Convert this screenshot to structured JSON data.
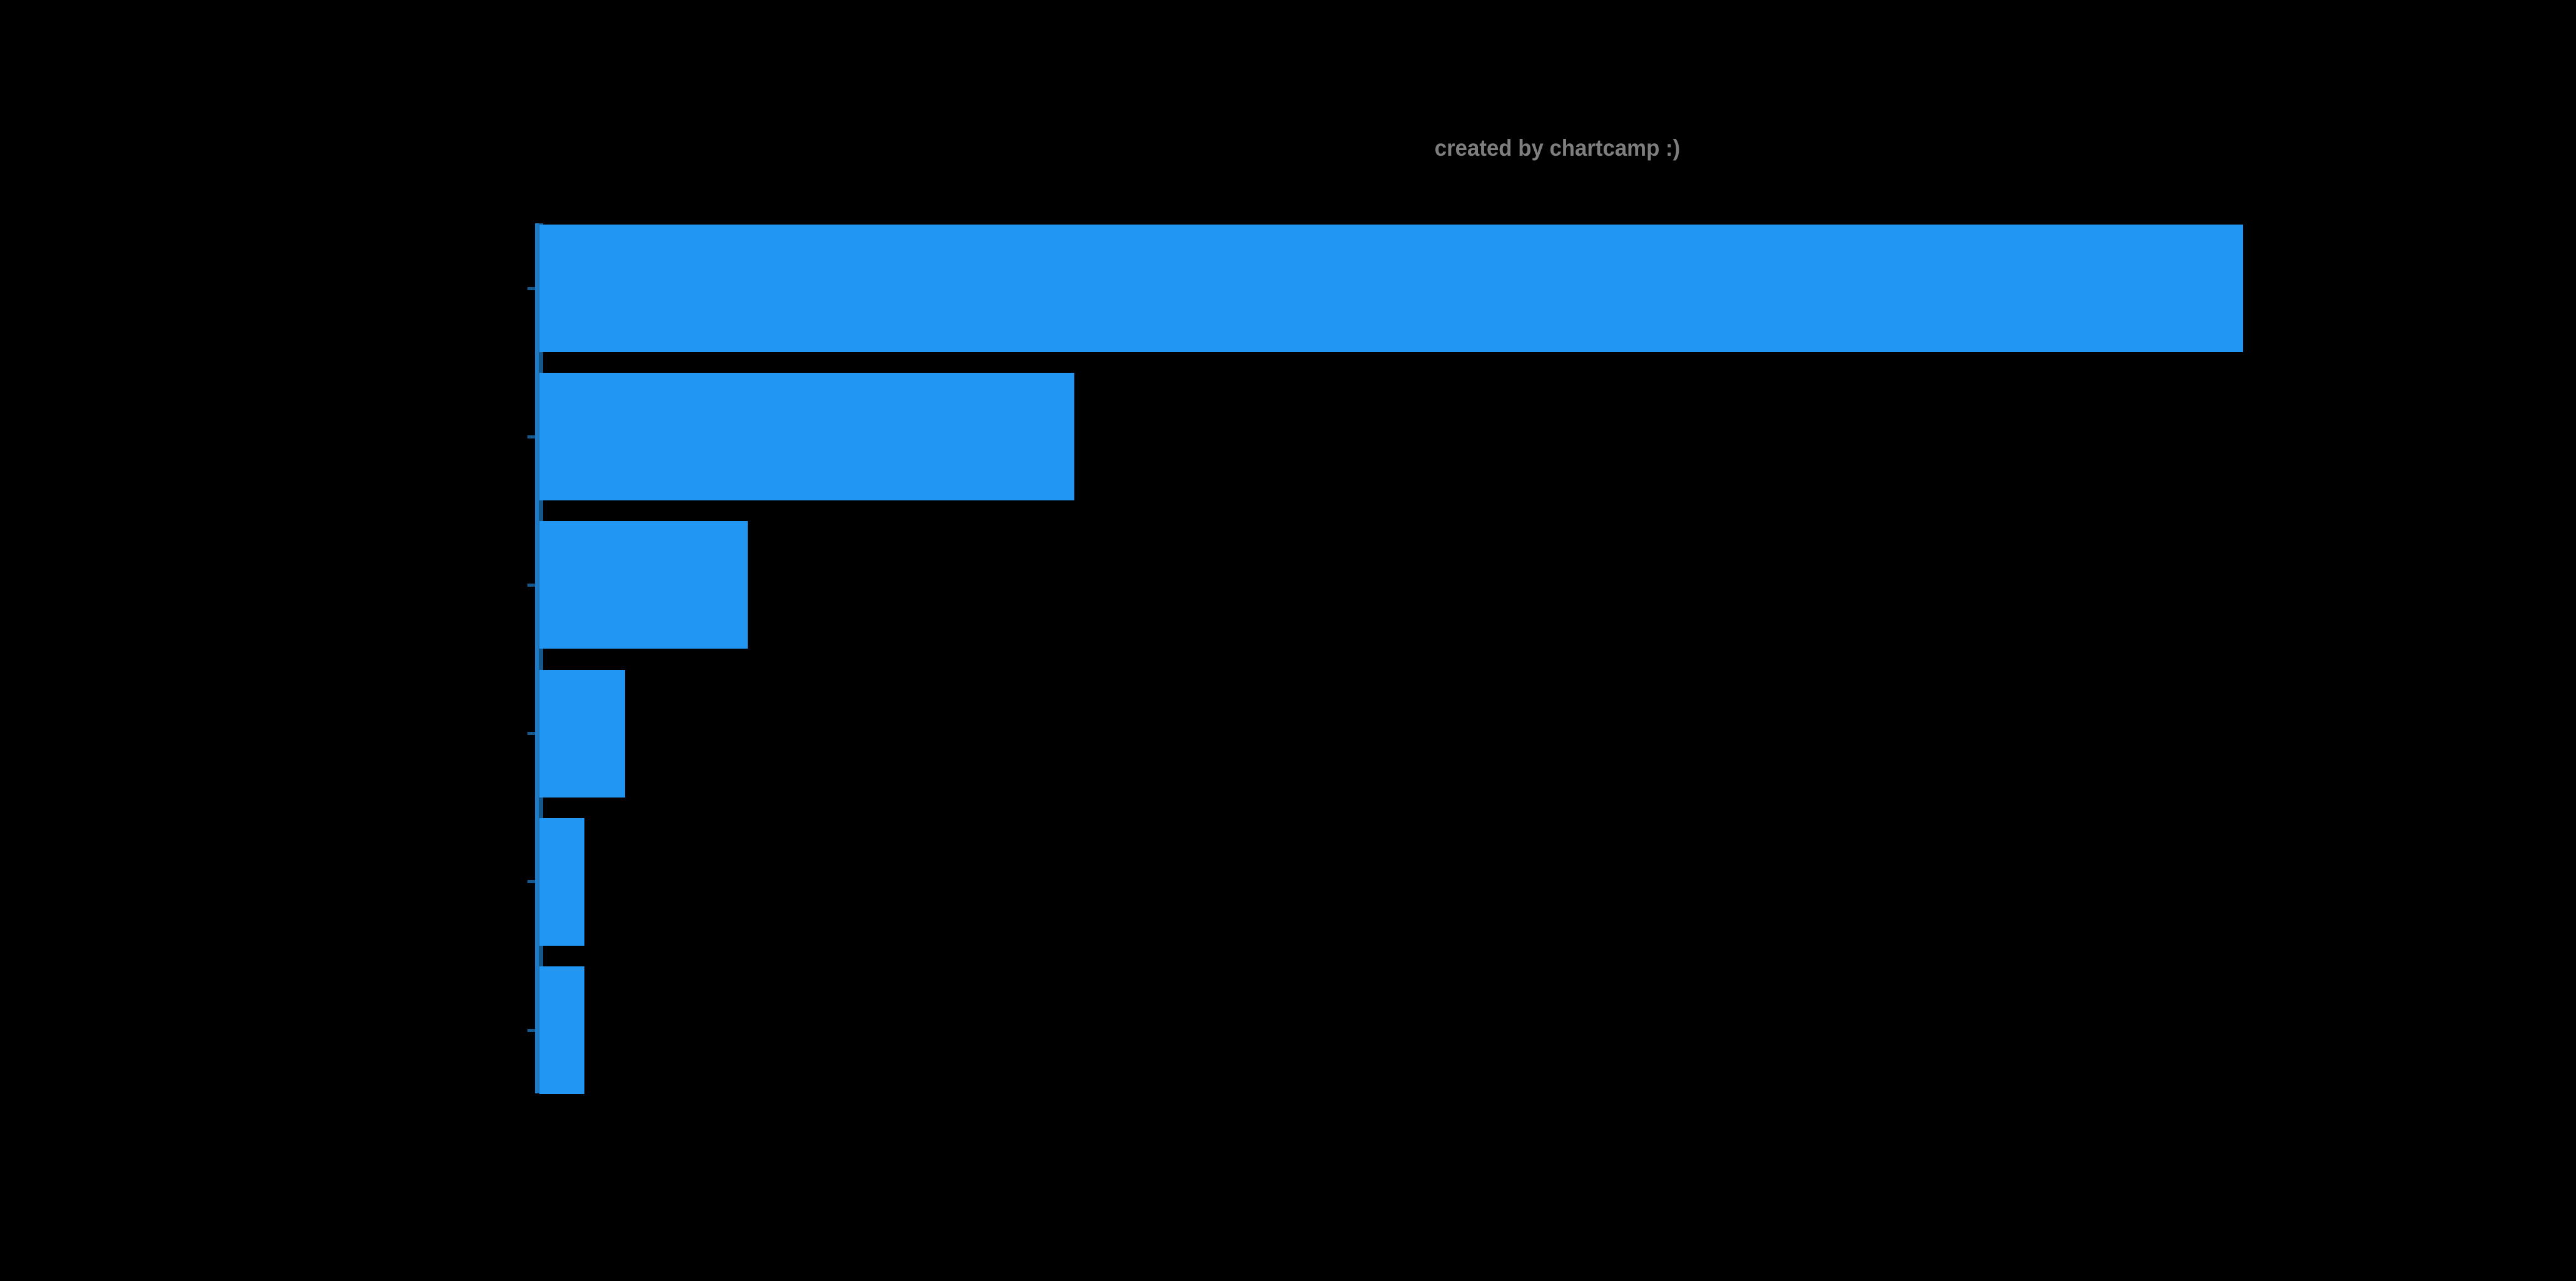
{
  "watermark": {
    "text": "created by chartcamp :)",
    "color": "#7e7e7e"
  },
  "chart_data": {
    "type": "bar",
    "orientation": "horizontal",
    "title": "",
    "xlabel": "",
    "ylabel": "",
    "categories": [
      "",
      "",
      "",
      "",
      "",
      ""
    ],
    "values": [
      4.17,
      1.31,
      0.51,
      0.21,
      0.11,
      0.11
    ],
    "xlim": [
      0,
      5
    ],
    "x_tick_interval": 1,
    "grid": false,
    "legend_position": "none",
    "bar_color": "#2196f3",
    "axis_line_color_outer": "#1f7cc9",
    "axis_line_color_inner": "#15588d",
    "background_color": "#000000",
    "note": "All axis, tick, category and title text is rendered black-on-black (invisible in pixels); values estimated from tick-mark spacing along the value axis."
  }
}
